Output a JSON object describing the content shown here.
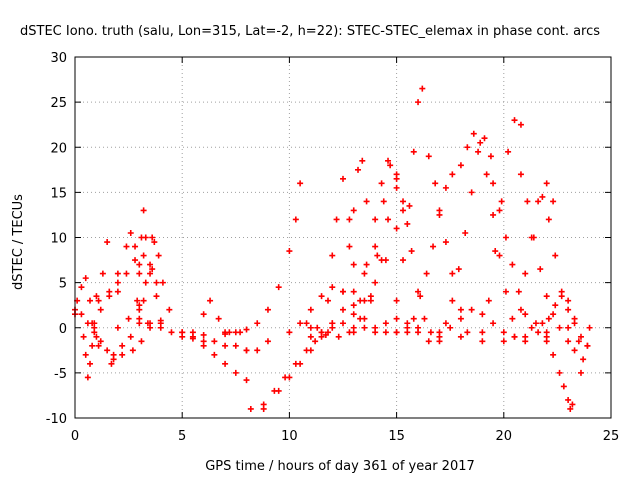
{
  "chart_data": {
    "type": "scatter",
    "title": "dSTEC Iono. truth (salu, Lon=315, Lat=-2, h=22): STEC-STEC_elemax in phase cont. arcs",
    "xlabel": "GPS time / hours of day 361 of year 2017",
    "ylabel": "dSTEC  / TECUs",
    "xlim": [
      0,
      25
    ],
    "ylim": [
      -10,
      30
    ],
    "x_ticks": [
      0,
      5,
      10,
      15,
      20,
      25
    ],
    "y_ticks": [
      -10,
      -5,
      0,
      5,
      10,
      15,
      20,
      25,
      30
    ],
    "x_tick_labels": [
      "0",
      "5",
      "10",
      "15",
      "20",
      "25"
    ],
    "y_tick_labels": [
      "-10",
      "-5",
      "0",
      "5",
      "10",
      "15",
      "20",
      "25",
      "30"
    ],
    "grid": true,
    "marker": "+",
    "color": "#ff0000",
    "series": [
      {
        "x": [
          0.0,
          0.3,
          0.6,
          0.9,
          1.2,
          1.5,
          1.8
        ],
        "y": [
          2.0,
          1.5,
          0.5,
          -0.5,
          -1.5,
          -2.5,
          -3.5
        ]
      },
      {
        "x": [
          0.1,
          0.3,
          0.5,
          0.7,
          0.9,
          1.1
        ],
        "y": [
          3.0,
          4.5,
          5.5,
          3.0,
          0.5,
          -2.0
        ]
      },
      {
        "x": [
          0.4,
          0.5,
          0.6,
          0.7,
          0.8,
          0.9,
          1.1,
          1.3,
          1.5
        ],
        "y": [
          -1.0,
          -3.0,
          -5.5,
          -4.0,
          -2.0,
          0.0,
          3.0,
          6.0,
          9.5
        ]
      },
      {
        "x": [
          0.8,
          1.2,
          1.6,
          2.0,
          2.4,
          2.8,
          3.2,
          3.6
        ],
        "y": [
          0.5,
          2.0,
          3.5,
          5.0,
          6.0,
          7.5,
          8.0,
          6.5
        ]
      },
      {
        "x": [
          1.6,
          2.0,
          2.4,
          2.6,
          2.8,
          3.0,
          3.2,
          3.4
        ],
        "y": [
          4.0,
          6.0,
          9.0,
          10.5,
          9.0,
          6.0,
          3.0,
          0.5
        ]
      },
      {
        "x": [
          1.8,
          2.2,
          2.6,
          3.0,
          3.3,
          3.6
        ],
        "y": [
          -3.0,
          -2.0,
          -1.0,
          1.0,
          5.0,
          10.0
        ]
      },
      {
        "x": [
          1.7,
          2.2,
          2.7,
          3.1,
          3.5,
          3.8
        ],
        "y": [
          -4.0,
          -3.0,
          -2.5,
          -1.5,
          0.0,
          3.5
        ]
      },
      {
        "x": [
          2.9,
          3.0,
          3.1,
          3.2,
          3.3,
          3.5,
          3.8
        ],
        "y": [
          3.0,
          7.0,
          10.0,
          13.0,
          10.0,
          7.0,
          5.0
        ]
      },
      {
        "x": [
          3.5,
          3.7,
          3.9,
          4.1,
          4.4
        ],
        "y": [
          6.0,
          9.5,
          8.0,
          5.0,
          2.0
        ]
      },
      {
        "x": [
          0.0,
          1.0,
          2.0,
          3.0,
          4.0,
          5.0,
          6.0,
          7.0,
          8.0
        ],
        "y": [
          1.5,
          3.5,
          4.0,
          2.5,
          0.5,
          -1.0,
          -1.5,
          -2.0,
          -2.5
        ]
      },
      {
        "x": [
          1.0,
          2.0,
          3.0,
          4.0,
          5.0,
          6.0,
          7.0,
          7.7
        ],
        "y": [
          -1.0,
          0.0,
          0.5,
          0.0,
          -0.5,
          -0.8,
          -0.7,
          -0.5
        ]
      },
      {
        "x": [
          2.5,
          3.5,
          4.5,
          5.5,
          6.5,
          7.5,
          8.5
        ],
        "y": [
          1.0,
          0.5,
          -0.5,
          -1.0,
          -1.5,
          -2.0,
          -2.5
        ]
      },
      {
        "x": [
          3.0,
          4.0,
          5.0,
          5.5,
          6.0,
          6.5,
          7.0,
          7.5,
          8.0
        ],
        "y": [
          2.0,
          0.8,
          -0.5,
          -1.2,
          -2.0,
          -3.0,
          -4.0,
          -5.0,
          -5.8
        ]
      },
      {
        "x": [
          5.5,
          6.0,
          6.3,
          6.7,
          7.2
        ],
        "y": [
          -0.5,
          1.5,
          3.0,
          1.0,
          -0.5
        ]
      },
      {
        "x": [
          7.0,
          7.5,
          8.0,
          8.5,
          9.0,
          9.5,
          10.0,
          10.3,
          10.5
        ],
        "y": [
          -0.5,
          -0.5,
          -0.2,
          0.5,
          2.0,
          4.5,
          8.5,
          12.0,
          16.0
        ]
      },
      {
        "x": [
          8.2,
          8.8,
          9.3,
          9.8,
          10.3,
          10.8,
          11.2,
          11.7
        ],
        "y": [
          -9.0,
          -8.5,
          -7.0,
          -5.5,
          -4.0,
          -2.5,
          -1.5,
          -0.8
        ]
      },
      {
        "x": [
          8.8,
          9.5,
          10.0,
          10.5,
          11.0,
          11.5,
          12.0,
          12.5,
          13.0,
          13.5,
          14.0
        ],
        "y": [
          -9.0,
          -7.0,
          -5.5,
          -4.0,
          -2.5,
          -1.0,
          0.5,
          2.0,
          4.0,
          6.0,
          9.0
        ]
      },
      {
        "x": [
          10.5,
          11.0,
          11.5,
          12.0,
          12.5,
          13.0,
          13.5,
          14.0,
          14.5,
          15.0,
          15.5
        ],
        "y": [
          0.5,
          2.0,
          3.5,
          4.5,
          4.0,
          2.5,
          1.0,
          0.0,
          -0.5,
          -0.5,
          0.0
        ]
      },
      {
        "x": [
          11.0,
          11.5,
          12.0,
          12.5,
          13.0,
          13.5,
          14.0,
          14.5,
          15.0
        ],
        "y": [
          -1.0,
          -0.5,
          0.0,
          0.5,
          1.5,
          3.0,
          5.0,
          7.5,
          11.0
        ]
      },
      {
        "x": [
          10.8,
          11.3,
          11.8,
          12.3,
          12.8,
          13.3,
          13.8,
          14.3,
          14.6
        ],
        "y": [
          0.5,
          0.0,
          -0.5,
          -1.0,
          -0.5,
          1.0,
          3.5,
          7.5,
          12.0
        ]
      },
      {
        "x": [
          11.5,
          11.8,
          12.0,
          12.2,
          12.5,
          12.8,
          13.0
        ],
        "y": [
          -0.5,
          3.0,
          8.0,
          12.0,
          16.5,
          12.0,
          7.0
        ]
      },
      {
        "x": [
          12.5,
          12.8,
          13.0,
          13.2,
          13.4,
          13.6
        ],
        "y": [
          4.0,
          9.0,
          13.0,
          17.5,
          18.5,
          14.0
        ]
      },
      {
        "x": [
          13.0,
          13.3,
          13.6,
          14.0,
          14.3,
          14.6,
          15.0
        ],
        "y": [
          -0.5,
          3.0,
          7.0,
          12.0,
          16.0,
          18.5,
          16.5
        ]
      },
      {
        "x": [
          13.5,
          13.8,
          14.1,
          14.4,
          14.7,
          15.0,
          15.3
        ],
        "y": [
          0.0,
          3.0,
          8.0,
          14.0,
          18.0,
          17.0,
          13.0
        ]
      },
      {
        "x": [
          14.5,
          15.0,
          15.3,
          15.6,
          15.8,
          16.0,
          16.2
        ],
        "y": [
          0.5,
          3.0,
          7.5,
          13.5,
          19.5,
          25.0,
          26.5
        ]
      },
      {
        "x": [
          15.0,
          15.3,
          15.5,
          15.7,
          16.0,
          16.3,
          16.6
        ],
        "y": [
          15.5,
          14.0,
          11.5,
          8.5,
          4.0,
          1.0,
          -0.5
        ]
      },
      {
        "x": [
          15.5,
          15.8,
          16.1,
          16.4,
          16.7,
          17.0,
          17.3,
          17.6
        ],
        "y": [
          -0.5,
          1.0,
          3.5,
          6.0,
          9.0,
          12.5,
          15.5,
          17.0
        ]
      },
      {
        "x": [
          16.5,
          16.8,
          17.0,
          17.3,
          17.6,
          18.0,
          18.3
        ],
        "y": [
          19.0,
          16.0,
          13.0,
          9.5,
          6.0,
          2.0,
          -0.5
        ]
      },
      {
        "x": [
          17.0,
          17.3,
          17.6,
          17.9,
          18.2,
          18.5,
          18.8,
          19.1,
          19.4
        ],
        "y": [
          -1.5,
          0.5,
          3.0,
          6.5,
          10.5,
          15.0,
          19.5,
          21.0,
          19.0
        ]
      },
      {
        "x": [
          18.0,
          18.3,
          18.6,
          18.9,
          19.2,
          19.5,
          19.8,
          20.1,
          20.4
        ],
        "y": [
          18.0,
          20.0,
          21.5,
          20.5,
          17.0,
          12.5,
          8.0,
          4.0,
          1.0
        ]
      },
      {
        "x": [
          19.0,
          19.3,
          19.6,
          19.9,
          20.2,
          20.5,
          20.8
        ],
        "y": [
          -0.5,
          3.0,
          8.5,
          14.0,
          19.5,
          23.0,
          22.5
        ]
      },
      {
        "x": [
          19.5,
          19.8,
          20.1,
          20.4,
          20.7,
          21.0,
          21.3,
          21.6,
          22.0
        ],
        "y": [
          16.0,
          13.0,
          10.0,
          7.0,
          4.0,
          1.5,
          0.0,
          -0.5,
          -0.5
        ]
      },
      {
        "x": [
          20.5,
          20.8,
          21.0,
          21.3,
          21.6,
          22.0,
          22.3
        ],
        "y": [
          -1.0,
          2.0,
          6.0,
          10.0,
          14.0,
          16.0,
          14.0
        ]
      },
      {
        "x": [
          20.8,
          21.1,
          21.4,
          21.7,
          22.0,
          22.3,
          22.6,
          23.0
        ],
        "y": [
          17.0,
          14.0,
          10.0,
          6.5,
          3.5,
          1.5,
          0.0,
          -1.5
        ]
      },
      {
        "x": [
          21.8,
          22.1,
          22.4,
          22.7,
          23.0,
          23.3,
          23.6
        ],
        "y": [
          14.5,
          12.0,
          8.0,
          3.5,
          0.0,
          -2.5,
          -5.0
        ]
      },
      {
        "x": [
          22.0,
          22.3,
          22.6,
          22.8,
          23.0,
          23.1,
          23.2
        ],
        "y": [
          -1.0,
          -3.0,
          -5.0,
          -6.5,
          -8.0,
          -9.0,
          -8.5
        ]
      },
      {
        "x": [
          21.5,
          21.8,
          22.1,
          22.4,
          22.7,
          23.0,
          23.3,
          23.6,
          23.9
        ],
        "y": [
          0.5,
          0.5,
          1.0,
          2.5,
          4.0,
          3.0,
          1.0,
          -1.0,
          -2.0
        ]
      },
      {
        "x": [
          23.0,
          23.3,
          23.5,
          23.7,
          23.9,
          24.0
        ],
        "y": [
          2.0,
          0.5,
          -1.5,
          -3.5,
          -2.0,
          0.0
        ]
      },
      {
        "x": [
          8.0,
          9.0,
          10.0,
          11.0,
          12.0,
          13.0,
          14.0,
          15.0,
          16.0,
          17.0,
          18.0,
          19.0,
          20.0,
          21.0,
          22.0
        ],
        "y": [
          -2.5,
          -1.5,
          -0.5,
          0.0,
          0.5,
          0.0,
          -0.5,
          -0.5,
          0.0,
          -0.5,
          -1.0,
          -1.5,
          -1.5,
          -1.0,
          -1.5
        ]
      },
      {
        "x": [
          15.0,
          15.5,
          16.0,
          16.5,
          17.0,
          17.5,
          18.0,
          18.5,
          19.0,
          19.5,
          20.0,
          20.5,
          21.0
        ],
        "y": [
          1.0,
          0.5,
          -0.5,
          -1.5,
          -1.0,
          0.0,
          1.0,
          2.0,
          1.5,
          0.5,
          -0.5,
          -1.0,
          -1.5
        ]
      }
    ]
  }
}
